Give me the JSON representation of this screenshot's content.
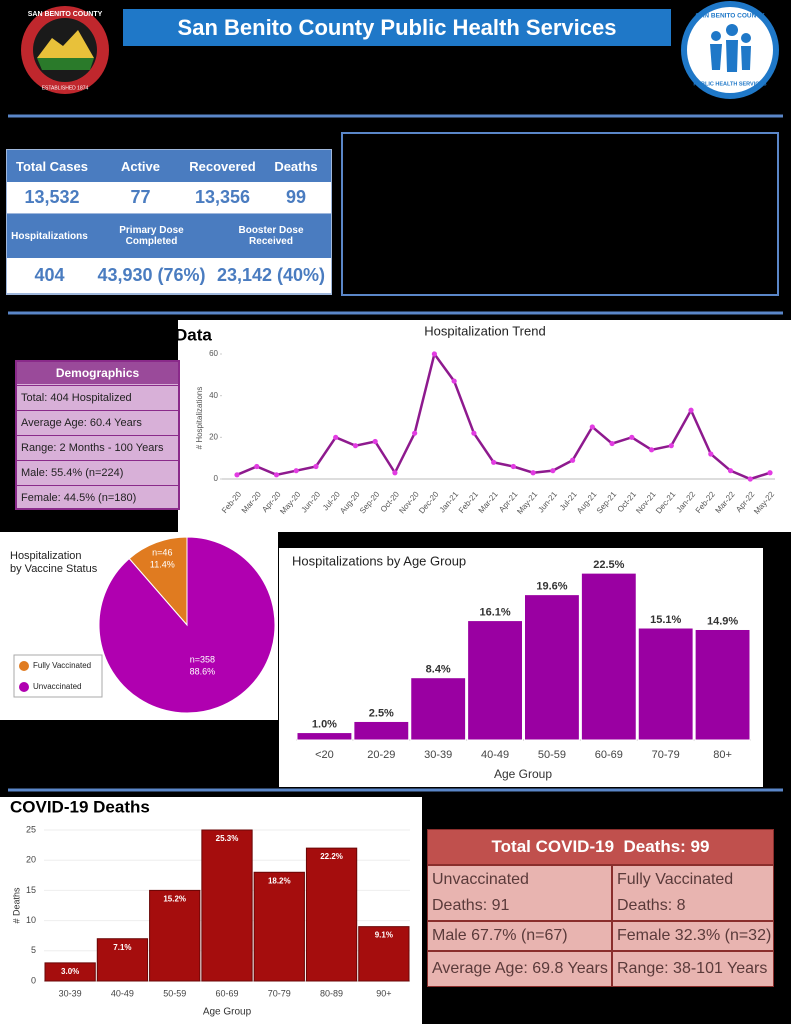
{
  "header": {
    "title": "San Benito County Public Health Services",
    "left_logo": [
      "SAN BENITO COUNTY",
      "ESTABLISHED 1874"
    ],
    "right_logo": [
      "SAN BENITO COUNTY",
      "PUBLIC HEALTH SERVICES"
    ]
  },
  "stats": {
    "rows": [
      [
        "Total Cases",
        "Active",
        "Recovered",
        "Deaths"
      ],
      [
        "13,532",
        "77",
        "13,356",
        "99"
      ],
      [
        "Hospitalizations",
        "Primary Dose\nCompleted",
        "Booster Dose\nReceived"
      ],
      [
        "404",
        "43,930 (76%)",
        "23,142 (40%)"
      ]
    ]
  },
  "section_title": "Data",
  "demographics": {
    "title": "Demographics",
    "items": [
      "Total: 404 Hospitalized",
      "Average Age: 60.4 Years",
      "Range: 2 Months - 100 Years",
      "Male: 55.4% (n=224)",
      "Female: 44.5% (n=180)"
    ]
  },
  "chart_data": [
    {
      "type": "line",
      "title": "Hospitalization Trend",
      "y_label": "# Hospitalizations",
      "categories": [
        "Feb-20",
        "Mar-20",
        "Apr-20",
        "May-20",
        "Jun-20",
        "Jul-20",
        "Aug-20",
        "Sep-20",
        "Oct-20",
        "Nov-20",
        "Dec-20",
        "Jan-21",
        "Feb-21",
        "Mar-21",
        "Apr-21",
        "May-21",
        "Jun-21",
        "Jul-21",
        "Aug-21",
        "Sep-21",
        "Oct-21",
        "Nov-21",
        "Dec-21",
        "Jan-22",
        "Feb-22",
        "Mar-22",
        "Apr-22",
        "May-22"
      ],
      "values": [
        2,
        6,
        2,
        4,
        6,
        20,
        16,
        18,
        3,
        22,
        60,
        47,
        22,
        8,
        6,
        3,
        4,
        9,
        25,
        17,
        20,
        14,
        16,
        33,
        12,
        4,
        0,
        3
      ],
      "color": "#8e1a8e",
      "marker_color": "#e23ce2",
      "ylim": [
        0,
        60
      ],
      "yticks": [
        0,
        20,
        40,
        60
      ],
      "grid": false
    },
    {
      "type": "pie",
      "title": "Hospitalization\nby Vaccine Status",
      "categories": [
        "Fully Vaccinated",
        "Unvaccinated"
      ],
      "values": [
        11.4,
        88.6
      ],
      "value_labels": [
        "11.4%",
        "88.6%"
      ],
      "counts": [
        46,
        358
      ],
      "count_labels": [
        "n=46",
        "n=358"
      ],
      "colors": [
        "#e07b20",
        "#b000b0"
      ]
    },
    {
      "type": "bar",
      "title": "Hospitalizations by Age Group",
      "x_label": "Age Group",
      "categories": [
        "<20",
        "20-29",
        "30-39",
        "40-49",
        "50-59",
        "60-69",
        "70-79",
        "80+"
      ],
      "values": [
        1.0,
        2.5,
        8.4,
        16.1,
        19.6,
        22.5,
        15.1,
        14.9
      ],
      "value_labels": [
        "1.0%",
        "2.5%",
        "8.4%",
        "16.1%",
        "19.6%",
        "22.5%",
        "15.1%",
        "14.9%"
      ],
      "color": "#9a00a2",
      "ylim": [
        0,
        24
      ]
    },
    {
      "type": "bar",
      "title": "COVID-19 Deaths",
      "x_label": "Age Group",
      "y_label": "# Deaths",
      "categories": [
        "30-39",
        "40-49",
        "50-59",
        "60-69",
        "70-79",
        "80-89",
        "90+"
      ],
      "values": [
        3,
        7,
        15,
        25,
        18,
        22,
        9
      ],
      "percent_labels": [
        "3.0%",
        "7.1%",
        "15.2%",
        "25.3%",
        "18.2%",
        "22.2%",
        "9.1%"
      ],
      "color": "#a50d0d",
      "ylim": [
        0,
        25
      ],
      "yticks": [
        0,
        5,
        10,
        15,
        20,
        25
      ]
    }
  ],
  "deaths_table": {
    "title": "Total COVID-19  Deaths: 99",
    "rows": [
      [
        "Unvaccinated\nDeaths: 91",
        "Fully Vaccinated\nDeaths: 8"
      ],
      [
        "Male 67.7% (n=67)",
        "Female 32.3% (n=32)"
      ],
      [
        "Average Age: 69.8 Years",
        "Range: 38-101 Years"
      ]
    ]
  }
}
